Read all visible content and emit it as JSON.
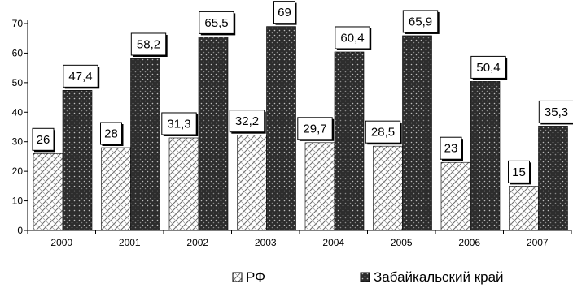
{
  "chart_data": {
    "type": "bar",
    "categories": [
      "2000",
      "2001",
      "2002",
      "2003",
      "2004",
      "2005",
      "2006",
      "2007"
    ],
    "series": [
      {
        "name": "РФ",
        "values": [
          26,
          28,
          31.3,
          32.2,
          29.7,
          28.5,
          23,
          15
        ],
        "labels": [
          "26",
          "28",
          "31,3",
          "32,2",
          "29,7",
          "28,5",
          "23",
          "15"
        ],
        "pattern": "crosshatch"
      },
      {
        "name": "Забайкальский край",
        "values": [
          47.4,
          58.2,
          65.5,
          69,
          60.4,
          65.9,
          50.4,
          35.3
        ],
        "labels": [
          "47,4",
          "58,2",
          "65,5",
          "69",
          "60,4",
          "65,9",
          "50,4",
          "35,3"
        ],
        "pattern": "dark-dotted"
      }
    ],
    "yticks": [
      "0",
      "10",
      "20",
      "30",
      "40",
      "50",
      "60",
      "70"
    ],
    "ylim": [
      0,
      70
    ],
    "grid": false,
    "legend_position": "bottom",
    "title": "",
    "xlabel": "",
    "ylabel": ""
  },
  "legend": {
    "items": [
      {
        "label": "РФ",
        "icon": "crosshatch-swatch-icon"
      },
      {
        "label": "Забайкальский край",
        "icon": "dark-dotted-swatch-icon"
      }
    ]
  }
}
